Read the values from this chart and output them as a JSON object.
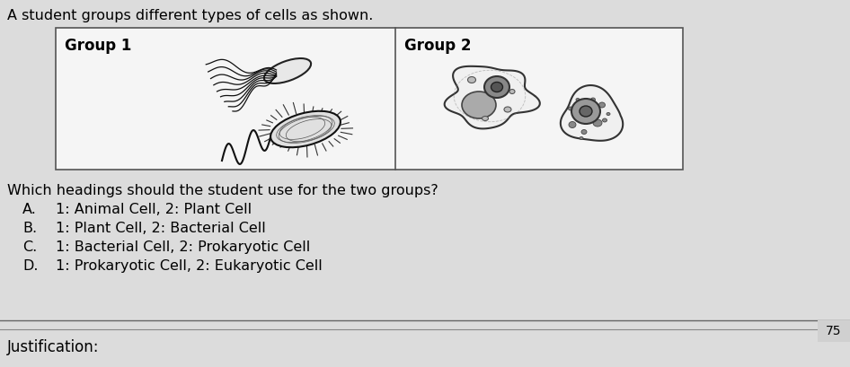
{
  "background_color": "#c8c8c8",
  "inner_bg": "#e0e0e0",
  "box_bg": "#f0f0f0",
  "title_text": "A student groups different types of cells as shown.",
  "group1_label": "Group 1",
  "group2_label": "Group 2",
  "question_text": "Which headings should the student use for the two groups?",
  "options": [
    {
      "letter": "A.",
      "text": "1: Animal Cell, 2: Plant Cell"
    },
    {
      "letter": "B.",
      "text": "1: Plant Cell, 2: Bacterial Cell"
    },
    {
      "letter": "C.",
      "text": "1: Bacterial Cell, 2: Prokaryotic Cell"
    },
    {
      "letter": "D.",
      "text": "1: Prokaryotic Cell, 2: Eukaryotic Cell"
    }
  ],
  "page_number": "75",
  "justification_label": "Justification:",
  "title_fontsize": 11.5,
  "option_fontsize": 11.5,
  "question_fontsize": 11.5,
  "label_fontsize": 12
}
